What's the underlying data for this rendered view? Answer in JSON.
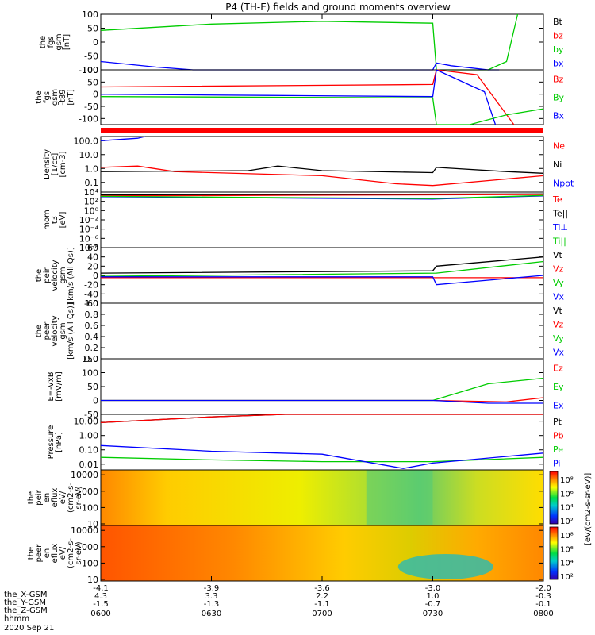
{
  "title": "P4 (TH-E) fields and ground moments overview",
  "time_axis": {
    "ticks": [
      "0600",
      "0630",
      "0700",
      "0730",
      "0800"
    ],
    "row_labels": [
      "the_X-GSM",
      "the_Y-GSM",
      "the_Z-GSM",
      "hhmm",
      "2020 Sep 21"
    ],
    "x_gsm": [
      "-4.1",
      "-3.9",
      "-3.6",
      "-3.0",
      "-2.0"
    ],
    "y_gsm": [
      "4.3",
      "3.3",
      "2.2",
      "1.0",
      "-0.3"
    ],
    "z_gsm": [
      "-1.5",
      "-1.3",
      "-1.1",
      "-0.7",
      "-0.1"
    ]
  },
  "colors": {
    "black": "#000000",
    "red": "#ff0000",
    "green": "#00cc00",
    "blue": "#0000ff"
  },
  "chart_data": [
    {
      "type": "line",
      "ylabel": [
        "the",
        "fgs",
        "gsm",
        "[nT]"
      ],
      "ylim": [
        -100,
        100
      ],
      "scale": "linear",
      "yticks": [
        100,
        50,
        0,
        -50,
        -100
      ],
      "series": [
        {
          "name": "Bt",
          "color": "#000000"
        },
        {
          "name": "bz",
          "color": "#ff0000"
        },
        {
          "name": "by",
          "color": "#00cc00",
          "x": [
            "0600",
            "0630",
            "0700",
            "0730",
            "0731",
            "0745",
            "0750",
            "0753"
          ],
          "y": [
            42,
            65,
            75,
            68,
            -100,
            -100,
            -70,
            100
          ]
        },
        {
          "name": "bx",
          "color": "#0000ff",
          "x": [
            "0600",
            "0615",
            "0625",
            "0730",
            "0731",
            "0735",
            "0745",
            "0748"
          ],
          "y": [
            -70,
            -90,
            -100,
            -100,
            -75,
            -85,
            -100,
            -100
          ]
        }
      ]
    },
    {
      "type": "line",
      "ylabel": [
        "the",
        "fgs",
        "gsm",
        "-t89",
        "[nT]"
      ],
      "ylim": [
        -125,
        100
      ],
      "scale": "linear",
      "yticks": [
        100,
        50,
        0,
        -50,
        -100
      ],
      "series": [
        {
          "name": "Bz",
          "color": "#ff0000",
          "x": [
            "0600",
            "0730",
            "0731",
            "0742",
            "0752"
          ],
          "y": [
            30,
            40,
            100,
            80,
            -125
          ]
        },
        {
          "name": "By",
          "color": "#00cc00",
          "x": [
            "0600",
            "0730",
            "0731",
            "0740",
            "0750",
            "0800"
          ],
          "y": [
            -10,
            -15,
            -125,
            -125,
            -85,
            -60
          ]
        },
        {
          "name": "Bx",
          "color": "#0000ff",
          "x": [
            "0600",
            "0645",
            "0730",
            "0731",
            "0744",
            "0747"
          ],
          "y": [
            0,
            -5,
            -10,
            100,
            10,
            -125
          ]
        }
      ]
    },
    {
      "type": "line",
      "ylabel": [
        "Density",
        "[1/cc]",
        "[cm-3]"
      ],
      "ylim": [
        0.02,
        200
      ],
      "scale": "log",
      "yticks": [
        100.0,
        10.0,
        1.0,
        0.1
      ],
      "ytick_labels": [
        "100.0",
        "10.0",
        "1.0",
        "0.1"
      ],
      "series": [
        {
          "name": "Ne",
          "color": "#ff0000",
          "x": [
            "0600",
            "0610",
            "0620",
            "0630",
            "0700",
            "0720",
            "0730",
            "0800"
          ],
          "y": [
            1.2,
            1.5,
            0.6,
            0.5,
            0.3,
            0.08,
            0.06,
            0.3
          ]
        },
        {
          "name": "Ni",
          "color": "#000000",
          "x": [
            "0600",
            "0640",
            "0648",
            "0700",
            "0730",
            "0731",
            "0750",
            "0800"
          ],
          "y": [
            0.6,
            0.7,
            1.5,
            0.7,
            0.5,
            1.2,
            0.6,
            0.45
          ]
        },
        {
          "name": "Npot",
          "color": "#0000ff",
          "x": [
            "0600",
            "0610",
            "0612"
          ],
          "y": [
            100,
            150,
            200
          ]
        }
      ]
    },
    {
      "type": "line",
      "ylabel": [
        "mom",
        "t3",
        "[eV]"
      ],
      "ylim": [
        1e-08,
        10000
      ],
      "scale": "log",
      "yticks": [
        10000,
        100,
        1,
        0.01,
        0.0001,
        1e-06,
        1e-08
      ],
      "ytick_labels": [
        "10⁴",
        "10²",
        "10⁰",
        "10⁻²",
        "10⁻⁴",
        "10⁻⁶",
        "10⁻⁸"
      ],
      "series": [
        {
          "name": "Te⊥",
          "color": "#ff0000",
          "x": [
            "0600",
            "0800"
          ],
          "y": [
            1500,
            3000
          ]
        },
        {
          "name": "Te||",
          "color": "#000000",
          "x": [
            "0600",
            "0800"
          ],
          "y": [
            2500,
            4000
          ]
        },
        {
          "name": "Ti⊥",
          "color": "#0000ff",
          "x": [
            "0600",
            "0730",
            "0800"
          ],
          "y": [
            1000,
            300,
            1500
          ]
        },
        {
          "name": "Ti||",
          "color": "#00cc00",
          "x": [
            "0600",
            "0730",
            "0800"
          ],
          "y": [
            1200,
            400,
            1800
          ]
        }
      ]
    },
    {
      "type": "line",
      "ylabel": [
        "the",
        "peir",
        "velocity",
        "gsm",
        "[km/s (All Qs)]"
      ],
      "ylim": [
        -60,
        60
      ],
      "scale": "linear",
      "yticks": [
        60,
        40,
        20,
        0,
        -20,
        -40,
        -60
      ],
      "series": [
        {
          "name": "Vt",
          "color": "#000000",
          "x": [
            "0600",
            "0730",
            "0731",
            "0800"
          ],
          "y": [
            5,
            10,
            20,
            40
          ]
        },
        {
          "name": "Vz",
          "color": "#ff0000",
          "x": [
            "0600",
            "0800"
          ],
          "y": [
            -5,
            -5
          ]
        },
        {
          "name": "Vy",
          "color": "#00cc00",
          "x": [
            "0600",
            "0731",
            "0800"
          ],
          "y": [
            -2,
            5,
            30
          ]
        },
        {
          "name": "Vx",
          "color": "#0000ff",
          "x": [
            "0600",
            "0730",
            "0731",
            "0800"
          ],
          "y": [
            -3,
            -3,
            -20,
            0
          ]
        }
      ]
    },
    {
      "type": "line",
      "ylabel": [
        "the",
        "peer",
        "velocity",
        "gsm",
        "[km/s (All Qs)]"
      ],
      "ylim": [
        0,
        1
      ],
      "scale": "linear",
      "yticks": [
        1.0,
        0.8,
        0.6,
        0.4,
        0.2,
        0.0
      ],
      "ytick_labels": [
        "1.0",
        "0.8",
        "0.6",
        "0.4",
        "0.2",
        "0.0"
      ],
      "series": [
        {
          "name": "Vt",
          "color": "#000000"
        },
        {
          "name": "Vz",
          "color": "#ff0000"
        },
        {
          "name": "Vy",
          "color": "#00cc00"
        },
        {
          "name": "Vx",
          "color": "#0000ff"
        }
      ]
    },
    {
      "type": "line",
      "ylabel": [
        "E=-VxB",
        "[mV/m]"
      ],
      "ylim": [
        -50,
        150
      ],
      "scale": "linear",
      "yticks": [
        150,
        100,
        50,
        0,
        -50
      ],
      "series": [
        {
          "name": "Ez",
          "color": "#ff0000",
          "x": [
            "0600",
            "0730",
            "0750",
            "0800"
          ],
          "y": [
            0,
            0,
            -5,
            10
          ]
        },
        {
          "name": "Ey",
          "color": "#00cc00",
          "x": [
            "0600",
            "0730",
            "0745",
            "0800"
          ],
          "y": [
            0,
            0,
            60,
            80
          ]
        },
        {
          "name": "Ex",
          "color": "#0000ff",
          "x": [
            "0600",
            "0730",
            "0745",
            "0800"
          ],
          "y": [
            0,
            0,
            -10,
            -10
          ]
        }
      ]
    },
    {
      "type": "line",
      "ylabel": [
        "Pressure",
        "[nPa]"
      ],
      "ylim": [
        0.004,
        30
      ],
      "scale": "log",
      "yticks": [
        10.0,
        1.0,
        0.1,
        0.01
      ],
      "ytick_labels": [
        "10.00",
        "1.00",
        "0.10",
        "0.01"
      ],
      "series": [
        {
          "name": "Pt",
          "color": "#000000",
          "x": [
            "0600",
            "0630",
            "0650",
            "0800"
          ],
          "y": [
            8,
            20,
            30,
            30
          ]
        },
        {
          "name": "Pb",
          "color": "#ff0000",
          "x": [
            "0600",
            "0630",
            "0650",
            "0800"
          ],
          "y": [
            8,
            20,
            30,
            30
          ]
        },
        {
          "name": "Pe",
          "color": "#00cc00",
          "x": [
            "0600",
            "0630",
            "0700",
            "0730",
            "0800"
          ],
          "y": [
            0.03,
            0.02,
            0.015,
            0.015,
            0.03
          ]
        },
        {
          "name": "Pi",
          "color": "#0000ff",
          "x": [
            "0600",
            "0630",
            "0700",
            "0722",
            "0730",
            "0800"
          ],
          "y": [
            0.2,
            0.08,
            0.05,
            0.005,
            0.012,
            0.06
          ]
        }
      ]
    },
    {
      "type": "heatmap",
      "ylabel": [
        "the",
        "peir",
        "en",
        "eflux",
        "eV/",
        "(cm2-s-",
        "sr-eV)"
      ],
      "ylim": [
        8,
        20000
      ],
      "scale": "log",
      "yticks": [
        10000,
        1000,
        100,
        10
      ],
      "ytick_labels": [
        "10000",
        "1000",
        "100",
        "10"
      ],
      "colorbar": {
        "ticks": [
          "10⁸",
          "10⁶",
          "10⁴",
          "10²"
        ],
        "zlabel": "[eV/(cm2-s-sr-eV)]"
      }
    },
    {
      "type": "heatmap",
      "ylabel": [
        "the",
        "peer",
        "en",
        "eflux",
        "eV/",
        "(cm2-s-",
        "sr-eV)"
      ],
      "ylim": [
        8,
        20000
      ],
      "scale": "log",
      "yticks": [
        10000,
        1000,
        100,
        10
      ],
      "ytick_labels": [
        "10000",
        "1000",
        "100",
        "10"
      ],
      "colorbar": {
        "ticks": [
          "10⁸",
          "10⁶",
          "10⁴",
          "10²"
        ],
        "zlabel": "[eV/(cm2-s-sr-eV)]"
      }
    }
  ]
}
